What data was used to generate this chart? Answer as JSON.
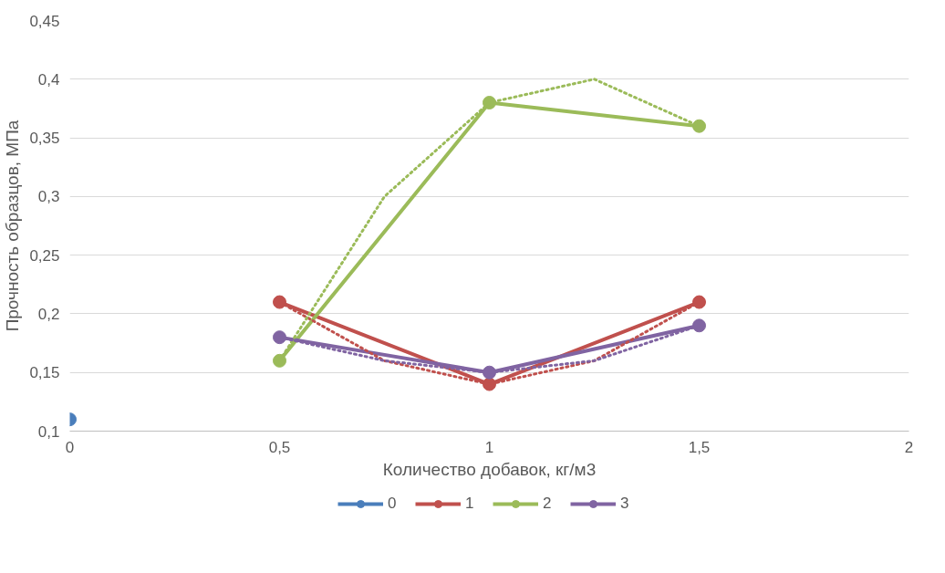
{
  "chart_data": {
    "type": "line",
    "xlabel": "Количество добавок, кг/м3",
    "ylabel": "Прочность образцов, МПа",
    "xlim": [
      0,
      2
    ],
    "xticks": [
      0,
      {
        "value": 0.5,
        "label": "0,5"
      },
      1,
      {
        "value": 1.5,
        "label": "1,5"
      },
      2
    ],
    "ylim": [
      0.1,
      0.45
    ],
    "yticks": [
      {
        "value": 0.1,
        "label": "0,1"
      },
      {
        "value": 0.15,
        "label": "0,15"
      },
      {
        "value": 0.2,
        "label": "0,2"
      },
      {
        "value": 0.25,
        "label": "0,25"
      },
      {
        "value": 0.3,
        "label": "0,3"
      },
      {
        "value": 0.35,
        "label": "0,35"
      },
      {
        "value": 0.4,
        "label": "0,4"
      },
      {
        "value": 0.45,
        "label": "0,45"
      }
    ],
    "grid": "y",
    "legend": "bottom",
    "marker": "circle",
    "line_style": "solid",
    "series": [
      {
        "name": "0",
        "color": "#4a7ebb",
        "x": [
          0
        ],
        "values": [
          0.11
        ]
      },
      {
        "name": "1",
        "color": "#c0504d",
        "x": [
          0.5,
          1,
          1.5
        ],
        "values": [
          0.21,
          0.14,
          0.21
        ]
      },
      {
        "name": "2",
        "color": "#9bbb59",
        "x": [
          0.5,
          1,
          1.5
        ],
        "values": [
          0.16,
          0.38,
          0.36
        ]
      },
      {
        "name": "3",
        "color": "#8064a2",
        "x": [
          0.5,
          1,
          1.5
        ],
        "values": [
          0.18,
          0.15,
          0.19
        ]
      },
      {
        "color": "#c0504d",
        "marker": "none",
        "line_style": "dotted",
        "x": [
          0.5,
          0.75,
          1,
          1.25,
          1.5
        ],
        "values": [
          0.21,
          0.16,
          0.14,
          0.16,
          0.21
        ]
      },
      {
        "color": "#9bbb59",
        "marker": "none",
        "line_style": "dotted",
        "x": [
          0.5,
          0.75,
          1,
          1.25,
          1.5
        ],
        "values": [
          0.16,
          0.3,
          0.38,
          0.4,
          0.36
        ]
      },
      {
        "color": "#8064a2",
        "marker": "none",
        "line_style": "dotted",
        "x": [
          0.5,
          0.75,
          1,
          1.25,
          1.5
        ],
        "values": [
          0.18,
          0.16,
          0.15,
          0.16,
          0.19
        ]
      }
    ]
  }
}
